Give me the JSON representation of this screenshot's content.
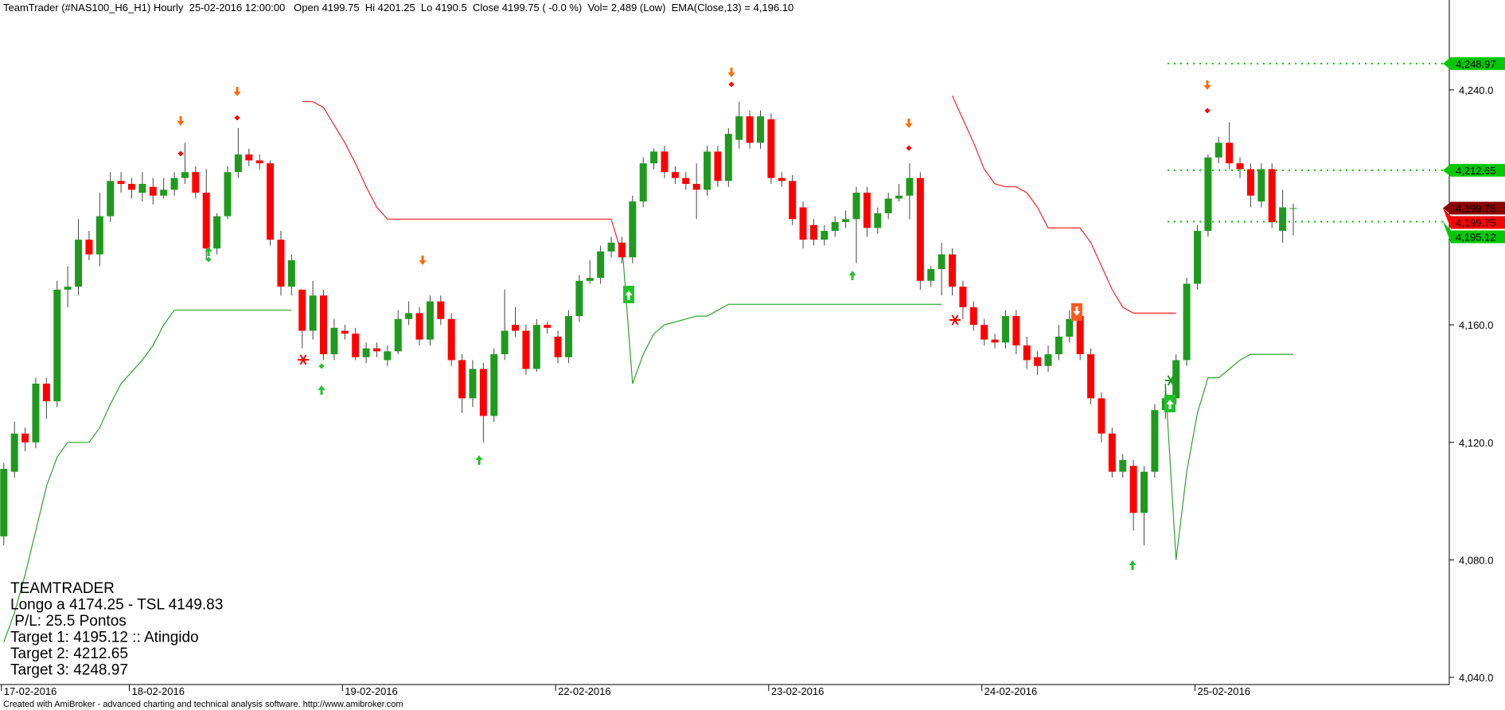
{
  "chart_data": {
    "type": "candlestick",
    "title": "TeamTrader (#NAS100_H6_H1) Hourly  25-02-2016 12:00:00   Open 4199.75  Hi 4201.25  Lo 4190.5  Close 4199.75 ( -0.0 %)  Vol= 2,489 (Low)  EMA(Close,13) = 4,196.10",
    "footer": "Created with AmiBroker - advanced charting and technical analysis software. http://www.amibroker.com",
    "categories": [
      "17-02-2016",
      null,
      null,
      null,
      null,
      null,
      null,
      null,
      null,
      null,
      null,
      null,
      "18-02-2016",
      null,
      null,
      null,
      null,
      null,
      null,
      null,
      null,
      null,
      null,
      null,
      null,
      null,
      null,
      null,
      null,
      null,
      null,
      null,
      "19-02-2016",
      null,
      null,
      null,
      null,
      null,
      null,
      null,
      null,
      null,
      null,
      null,
      null,
      null,
      null,
      null,
      null,
      null,
      null,
      null,
      "22-02-2016",
      null,
      null,
      null,
      null,
      null,
      null,
      null,
      null,
      null,
      null,
      null,
      null,
      null,
      null,
      null,
      null,
      null,
      null,
      null,
      "23-02-2016",
      null,
      null,
      null,
      null,
      null,
      null,
      null,
      null,
      null,
      null,
      null,
      null,
      null,
      null,
      null,
      null,
      null,
      null,
      null,
      "24-02-2016",
      null,
      null,
      null,
      null,
      null,
      null,
      null,
      null,
      null,
      null,
      null,
      null,
      null,
      null,
      null,
      null,
      null,
      null,
      null,
      "25-02-2016",
      null,
      null,
      null,
      null,
      null,
      null,
      null,
      null,
      null
    ],
    "open": [
      4088,
      4110,
      4123,
      4120,
      4140,
      4134,
      4172,
      4173,
      4189,
      4184,
      4197,
      4209,
      4208,
      4205,
      4207,
      4204,
      4206,
      4210,
      4212,
      4205,
      4186,
      4197,
      4212,
      4218,
      4216,
      4215,
      4189,
      4173,
      4172,
      4158,
      4170,
      4150,
      4158,
      4157,
      4149,
      4152,
      4148,
      4151,
      4162,
      4164,
      4155,
      4168,
      4162,
      4148,
      4135,
      4145,
      4129,
      4150,
      4160,
      4158,
      4145,
      4160,
      4156,
      4149,
      4163,
      4175,
      4176,
      4185,
      4188,
      4183,
      4202,
      4215,
      4219,
      4212,
      4210,
      4208,
      4206,
      4219,
      4209,
      4223,
      4231,
      4222,
      4230,
      4210,
      4209,
      4200,
      4194,
      4189,
      4192,
      4195,
      4196,
      4205,
      4193,
      4198,
      4203,
      4204,
      4210,
      4175,
      4179,
      4184,
      4173,
      4166,
      4160,
      4155,
      4154,
      4163,
      4153,
      4149,
      4146,
      4150,
      4156,
      4163,
      4150,
      4135,
      4123,
      4110,
      4112,
      4096,
      4110,
      4131,
      4135,
      4148,
      4174,
      4192,
      4217,
      4222,
      4215,
      4213,
      4202,
      4213,
      4192,
      4199.75
    ],
    "high": [
      4113,
      4127,
      4125,
      4142,
      4142,
      4175,
      4180,
      4196,
      4192,
      4205,
      4212,
      4212,
      4210,
      4212,
      4210,
      4210,
      4212,
      4222,
      4214,
      4213,
      4198,
      4214,
      4227,
      4220,
      4218,
      4216,
      4192,
      4184,
      4172,
      4175,
      4172,
      4162,
      4160,
      4159,
      4154,
      4154,
      4153,
      4165,
      4168,
      4166,
      4170,
      4170,
      4164,
      4150,
      4148,
      4147,
      4152,
      4172,
      4166,
      4160,
      4162,
      4161,
      4158,
      4165,
      4177,
      4182,
      4187,
      4190,
      4190,
      4204,
      4217,
      4220,
      4221,
      4214,
      4212,
      4215,
      4221,
      4221,
      4227,
      4236,
      4233,
      4233,
      4232,
      4212,
      4211,
      4202,
      4196,
      4194,
      4197,
      4199,
      4207,
      4207,
      4200,
      4205,
      4208,
      4215,
      4212,
      4180,
      4188,
      4186,
      4175,
      4168,
      4162,
      4157,
      4165,
      4165,
      4156,
      4151,
      4153,
      4160,
      4165,
      4165,
      4152,
      4137,
      4125,
      4116,
      4114,
      4112,
      4133,
      4140,
      4150,
      4176,
      4194,
      4218,
      4224,
      4229,
      4217,
      4215,
      4215,
      4215,
      4206,
      4201.25
    ],
    "low": [
      4085,
      4108,
      4117,
      4118,
      4128,
      4132,
      4166,
      4170,
      4182,
      4180,
      4195,
      4205,
      4203,
      4202,
      4201,
      4203,
      4204,
      4208,
      4203,
      4182,
      4184,
      4196,
      4210,
      4214,
      4213,
      4187,
      4170,
      4170,
      4152,
      4155,
      4148,
      4148,
      4155,
      4148,
      4147,
      4149,
      4146,
      4150,
      4160,
      4153,
      4153,
      4160,
      4146,
      4130,
      4132,
      4120,
      4127,
      4148,
      4156,
      4143,
      4144,
      4157,
      4147,
      4147,
      4161,
      4174,
      4174,
      4183,
      4181,
      4181,
      4200,
      4213,
      4210,
      4208,
      4206,
      4196,
      4204,
      4207,
      4207,
      4220,
      4220,
      4220,
      4208,
      4207,
      4194,
      4186,
      4187,
      4187,
      4190,
      4193,
      4181,
      4190,
      4191,
      4196,
      4202,
      4196,
      4172,
      4173,
      4170,
      4170,
      4162,
      4158,
      4153,
      4152,
      4152,
      4150,
      4145,
      4143,
      4144,
      4148,
      4154,
      4148,
      4133,
      4120,
      4108,
      4108,
      4090,
      4085,
      4108,
      4128,
      4133,
      4146,
      4172,
      4190,
      4215,
      4213,
      4210,
      4200,
      4200,
      4193,
      4188,
      4190.5
    ],
    "close": [
      4111,
      4123,
      4120,
      4140,
      4134,
      4172,
      4173,
      4189,
      4184,
      4197,
      4209,
      4208,
      4206,
      4208,
      4204,
      4206,
      4210,
      4212,
      4205,
      4186,
      4197,
      4212,
      4218,
      4216,
      4215,
      4189,
      4173,
      4182,
      4158,
      4170,
      4150,
      4159,
      4157,
      4149,
      4152,
      4151,
      4151,
      4162,
      4164,
      4155,
      4168,
      4162,
      4148,
      4135,
      4145,
      4129,
      4150,
      4158,
      4158,
      4145,
      4160,
      4159,
      4149,
      4163,
      4175,
      4176,
      4185,
      4188,
      4183,
      4202,
      4215,
      4219,
      4212,
      4210,
      4208,
      4206,
      4219,
      4209,
      4225,
      4231,
      4222,
      4231,
      4210,
      4209,
      4196,
      4189,
      4189,
      4192,
      4195,
      4196,
      4205,
      4193,
      4198,
      4203,
      4204,
      4210,
      4175,
      4179,
      4184,
      4173,
      4166,
      4160,
      4155,
      4154,
      4163,
      4153,
      4148,
      4146,
      4150,
      4156,
      4162,
      4150,
      4135,
      4123,
      4110,
      4114,
      4096,
      4110,
      4131,
      4135,
      4148,
      4174,
      4192,
      4217,
      4222,
      4215,
      4213,
      4204,
      4213,
      4195,
      4200,
      4199.75
    ],
    "up_color": "#1f9a1f",
    "down_color": "#ff0000",
    "lines": [
      {
        "color": "#2aa52a",
        "values": [
          4052,
          4062,
          4075,
          4090,
          4105,
          4115,
          4120,
          4120,
          4120,
          4125,
          4133,
          4140,
          4144,
          4148,
          4153,
          4160,
          4165,
          4165,
          4165,
          4165,
          4165,
          4165,
          4165,
          4165,
          4165,
          4165,
          4165,
          4165,
          null,
          null,
          null,
          null,
          null,
          null,
          null,
          null,
          null,
          null,
          null,
          null,
          null,
          null,
          null,
          null,
          null,
          null,
          null,
          null,
          null,
          null,
          null,
          null,
          null,
          null,
          null,
          null,
          null,
          null,
          4188,
          4140,
          4150,
          4157,
          4160,
          4161,
          4162,
          4163,
          4163,
          4165,
          4167,
          4167,
          4167,
          4167,
          4167,
          4167,
          4167,
          4167,
          4167,
          4167,
          4167,
          4167,
          4167,
          4167,
          4167,
          4167,
          4167,
          4167,
          4167,
          4167,
          4167,
          null,
          null,
          null,
          null,
          null,
          null,
          null,
          null,
          null,
          null,
          null,
          null,
          null,
          null,
          null,
          null,
          null,
          null,
          null,
          null,
          4140,
          4080,
          4110,
          4130,
          4142,
          4142,
          4145,
          4148,
          4150,
          4150,
          4150,
          4150,
          4150
        ]
      },
      {
        "color": "#ff2020",
        "values": [
          null,
          null,
          null,
          null,
          null,
          null,
          null,
          null,
          null,
          null,
          null,
          null,
          null,
          null,
          null,
          null,
          null,
          null,
          null,
          null,
          null,
          null,
          null,
          null,
          null,
          null,
          null,
          null,
          4236,
          4236,
          4234,
          4228,
          4222,
          4215,
          4207,
          4200,
          4196,
          4196,
          4196,
          4196,
          4196,
          4196,
          4196,
          4196,
          4196,
          4196,
          4196,
          4196,
          4196,
          4196,
          4196,
          4196,
          4196,
          4196,
          4196,
          4196,
          4196,
          4196,
          4184,
          null,
          null,
          null,
          null,
          null,
          null,
          null,
          null,
          null,
          null,
          null,
          null,
          null,
          null,
          null,
          null,
          null,
          null,
          null,
          null,
          null,
          null,
          null,
          null,
          null,
          null,
          null,
          null,
          null,
          null,
          4238,
          4230,
          4222,
          4213,
          4208,
          4207,
          4207,
          4205,
          4200,
          4193,
          4193,
          4193,
          4193,
          4188,
          4180,
          4172,
          4166,
          4164,
          4164,
          4164,
          4164,
          4164,
          null,
          null,
          null,
          null,
          null,
          null,
          null,
          null,
          null,
          null,
          null
        ]
      }
    ],
    "levels": [
      {
        "value": 4248.97,
        "label": "4,248.97"
      },
      {
        "value": 4212.65,
        "label": "4,212.65"
      },
      {
        "value": 4195.12,
        "label": "4,195.12"
      }
    ],
    "level_color": "#00c800",
    "price_tags": [
      {
        "value": 4199.75,
        "label": "4,199.75",
        "color": "#8b0000"
      },
      {
        "value": 4199.75,
        "label": "4,199.75",
        "color": "#ff0000"
      }
    ],
    "ylim": [
      4038.1,
      4270.6
    ],
    "yticks": [
      {
        "value": 4040,
        "label": "4,040.0"
      },
      {
        "value": 4080,
        "label": "4,080.0"
      },
      {
        "value": 4120,
        "label": "4,120.0"
      },
      {
        "value": 4160,
        "label": "4,160.0"
      },
      {
        "value": 4240,
        "label": "4,240.0"
      }
    ],
    "info_box": [
      "TEAMTRADER",
      "Longo a 4174.25 - TSL 4149.83",
      " P/L: 25.5 Pontos",
      "Target 1: 4195.12 :: Atingido",
      "Target 2: 4212.65",
      "Target 3: 4248.97"
    ]
  }
}
